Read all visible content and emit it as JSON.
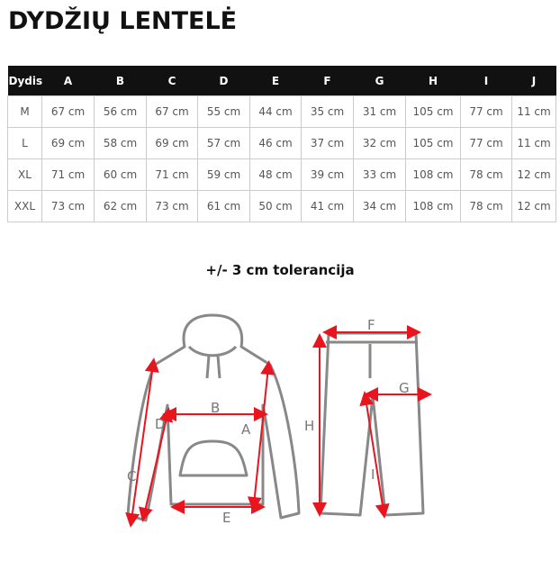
{
  "title": "DYDŽIŲ LENTELĖ",
  "table": {
    "headers": [
      "Dydis",
      "A",
      "B",
      "C",
      "D",
      "E",
      "F",
      "G",
      "H",
      "I",
      "J"
    ],
    "rows": [
      [
        "M",
        "67 cm",
        "56 cm",
        "67 cm",
        "55 cm",
        "44 cm",
        "35 cm",
        "31 cm",
        "105 cm",
        "77 cm",
        "11 cm"
      ],
      [
        "L",
        "69 cm",
        "58 cm",
        "69 cm",
        "57 cm",
        "46 cm",
        "37 cm",
        "32 cm",
        "105 cm",
        "77 cm",
        "11 cm"
      ],
      [
        "XL",
        "71 cm",
        "60 cm",
        "71 cm",
        "59 cm",
        "48 cm",
        "39 cm",
        "33 cm",
        "108 cm",
        "78 cm",
        "12 cm"
      ],
      [
        "XXL",
        "73 cm",
        "62 cm",
        "73 cm",
        "61 cm",
        "50 cm",
        "41 cm",
        "34 cm",
        "108 cm",
        "78 cm",
        "12 cm"
      ]
    ]
  },
  "tolerance": "+/- 3 cm tolerancija",
  "diagram": {
    "labels": {
      "A": "A",
      "B": "B",
      "C": "C",
      "D": "D",
      "E": "E",
      "F": "F",
      "G": "G",
      "H": "H",
      "I": "I"
    },
    "arrow_color": "#e8141e",
    "outline_color": "#888888"
  }
}
